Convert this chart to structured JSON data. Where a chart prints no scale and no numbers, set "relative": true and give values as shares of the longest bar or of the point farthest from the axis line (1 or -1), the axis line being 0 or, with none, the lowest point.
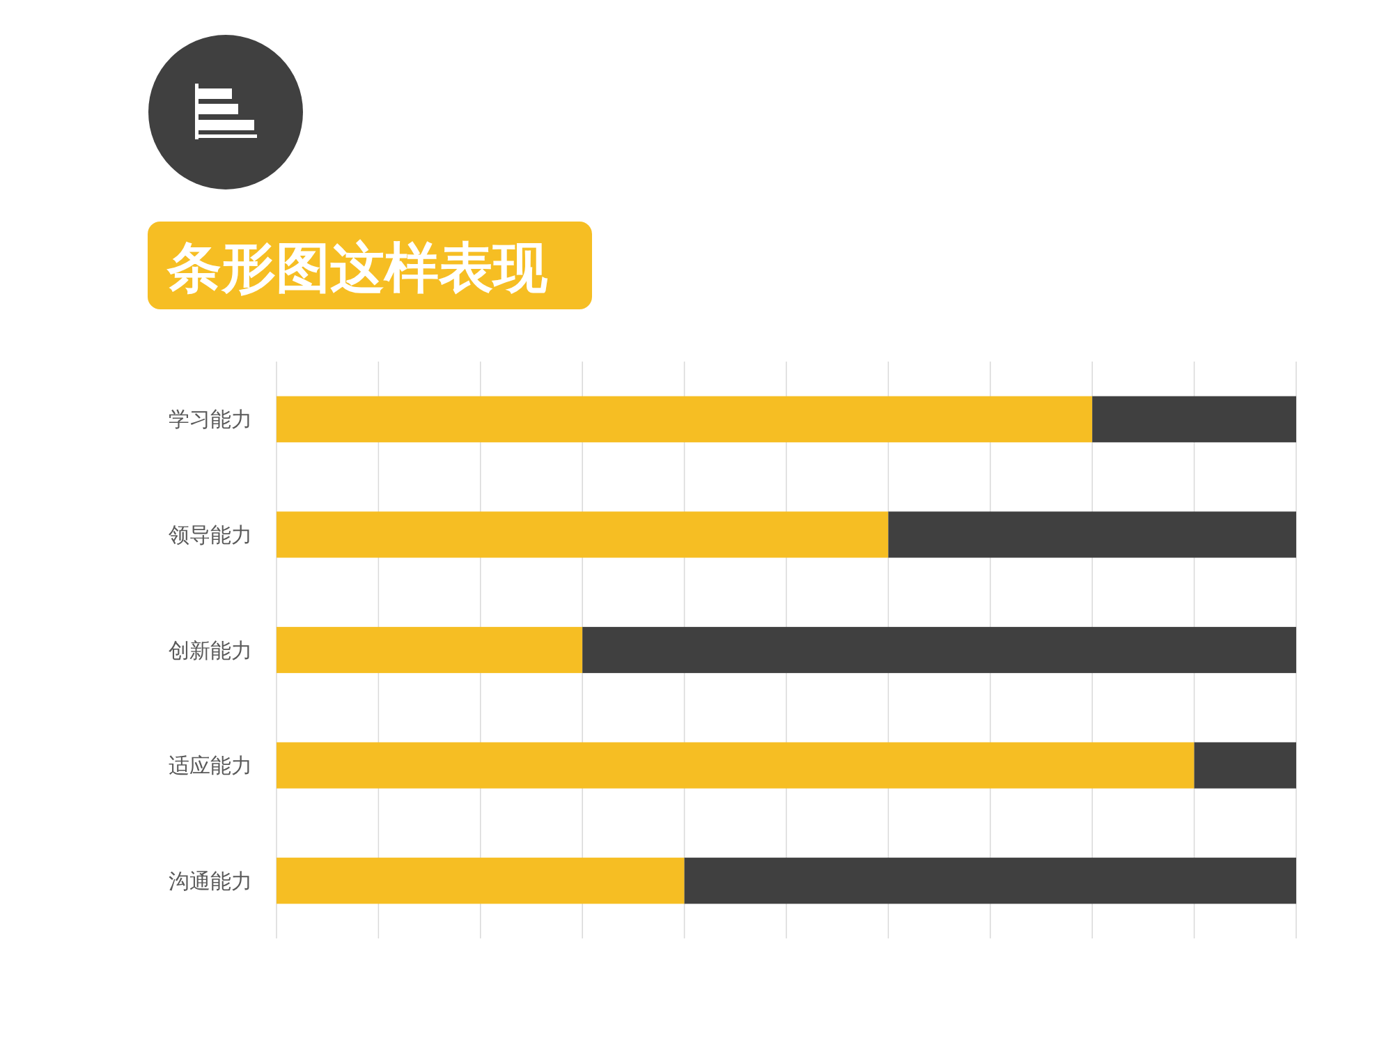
{
  "chart_data": {
    "type": "bar",
    "title": "条形图这样表现",
    "orientation": "horizontal",
    "stacked": true,
    "relative": true,
    "categories": [
      "学习能力",
      "领导能力",
      "创新能力",
      "适应能力",
      "沟通能力"
    ],
    "series": [
      {
        "color": "#f6be23",
        "values": [
          0.8,
          0.6,
          0.3,
          0.9,
          0.4
        ]
      },
      {
        "color": "#404040",
        "values": [
          0.2,
          0.4,
          0.7,
          0.1,
          0.6
        ]
      }
    ],
    "grid": "x"
  }
}
